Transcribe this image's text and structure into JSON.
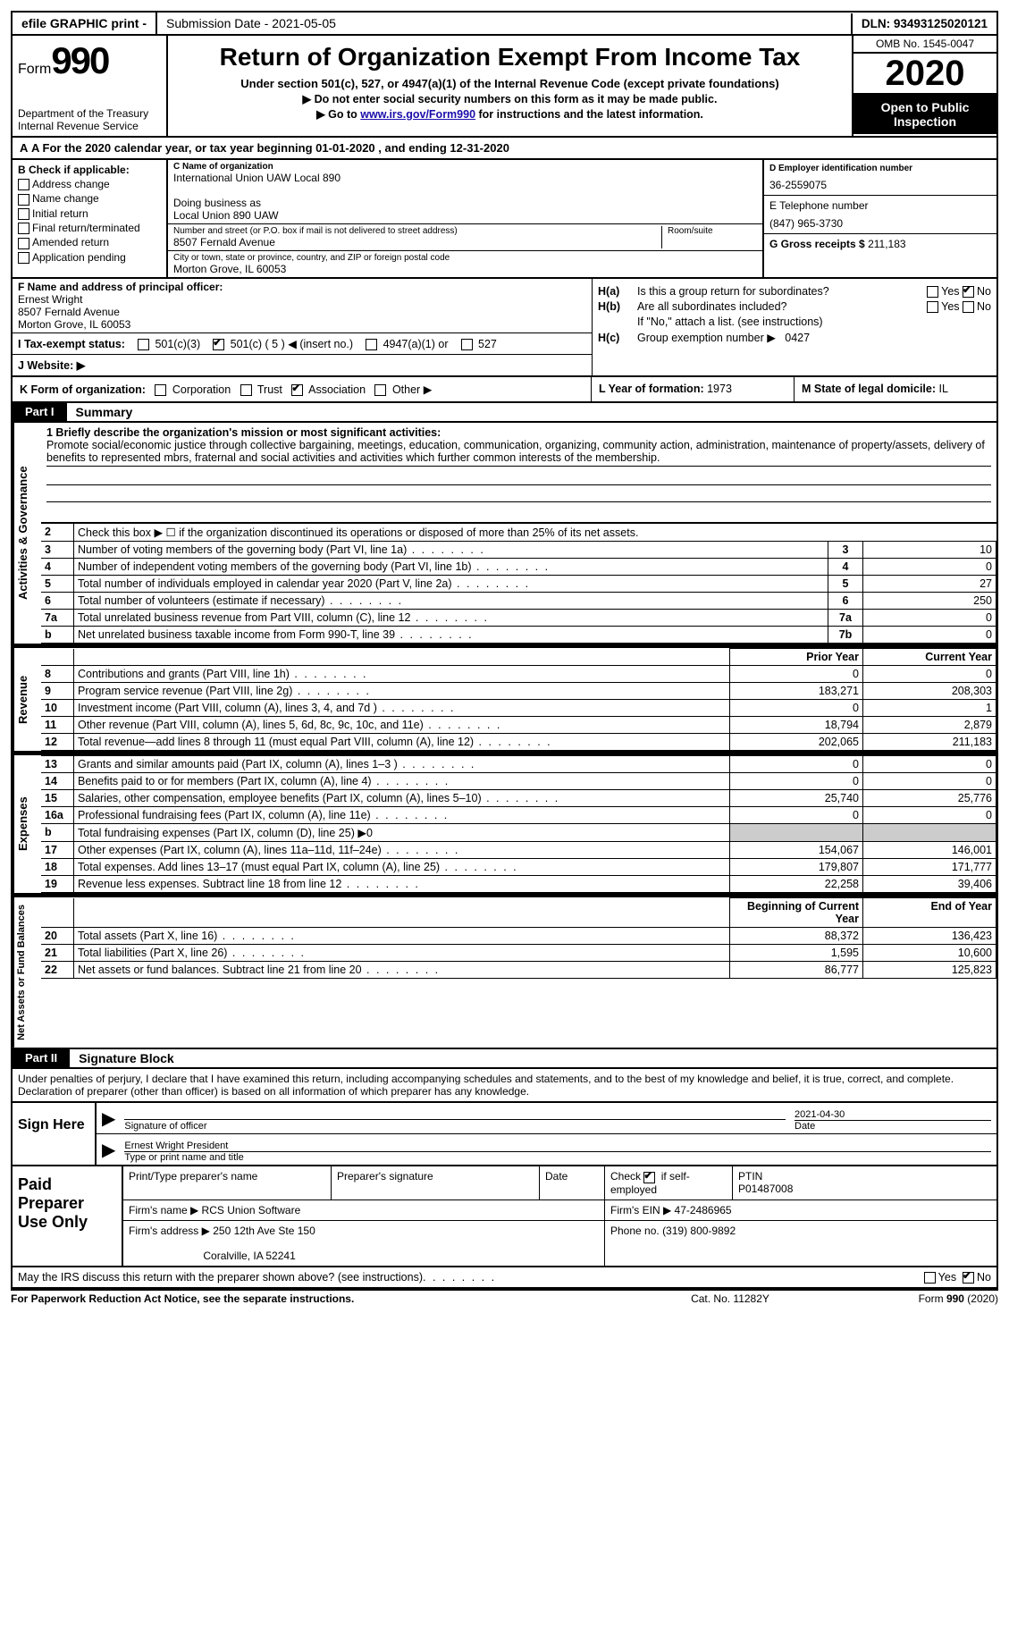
{
  "topbar": {
    "efile": "efile GRAPHIC print -",
    "submission": "Submission Date - 2021-05-05",
    "dln": "DLN: 93493125020121"
  },
  "header": {
    "form_word": "Form",
    "form_num": "990",
    "dept": "Department of the Treasury\nInternal Revenue Service",
    "title": "Return of Organization Exempt From Income Tax",
    "sub": "Under section 501(c), 527, or 4947(a)(1) of the Internal Revenue Code (except private foundations)",
    "line1": "▶ Do not enter social security numbers on this form as it may be made public.",
    "line2_pre": "▶ Go to ",
    "line2_link": "www.irs.gov/Form990",
    "line2_post": " for instructions and the latest information.",
    "omb": "OMB No. 1545-0047",
    "year": "2020",
    "open": "Open to Public Inspection"
  },
  "rowA": {
    "text": "A For the 2020 calendar year, or tax year beginning 01-01-2020    , and ending 12-31-2020"
  },
  "B": {
    "label": "B Check if applicable:",
    "items": [
      "Address change",
      "Name change",
      "Initial return",
      "Final return/terminated",
      "Amended return",
      "Application pending"
    ]
  },
  "C": {
    "name_lbl": "C Name of organization",
    "name": "International Union UAW Local 890",
    "dba_lbl": "Doing business as",
    "dba": "Local Union 890 UAW",
    "street_lbl": "Number and street (or P.O. box if mail is not delivered to street address)",
    "room_lbl": "Room/suite",
    "street": "8507 Fernald Avenue",
    "city_lbl": "City or town, state or province, country, and ZIP or foreign postal code",
    "city": "Morton Grove, IL  60053"
  },
  "D": {
    "ein_lbl": "D Employer identification number",
    "ein": "36-2559075",
    "tel_lbl": "E Telephone number",
    "tel": "(847) 965-3730",
    "gross_lbl": "G Gross receipts $",
    "gross": "211,183"
  },
  "F": {
    "lbl": "F Name and address of principal officer:",
    "name": "Ernest Wright",
    "addr1": "8507 Fernald Avenue",
    "addr2": "Morton Grove, IL  60053"
  },
  "I": {
    "lbl": "I    Tax-exempt status:",
    "opt1": "501(c)(3)",
    "opt2": "501(c) ( 5 ) ◀ (insert no.)",
    "opt3": "4947(a)(1) or",
    "opt4": "527"
  },
  "J": {
    "lbl": "J    Website: ▶"
  },
  "H": {
    "ha_lbl": "H(a)",
    "ha_txt": "Is this a group return for subordinates?",
    "hb_lbl": "H(b)",
    "hb_txt": "Are all subordinates included?",
    "hb_note": "If \"No,\" attach a list. (see instructions)",
    "hc_lbl": "H(c)",
    "hc_txt": "Group exemption number ▶",
    "hc_val": "0427"
  },
  "K": {
    "k": "K Form of organization:",
    "opts": [
      "Corporation",
      "Trust",
      "Association",
      "Other ▶"
    ],
    "l_lbl": "L Year of formation:",
    "l_val": "1973",
    "m_lbl": "M State of legal domicile:",
    "m_val": "IL"
  },
  "part1": {
    "tag": "Part I",
    "title": "Summary"
  },
  "mission": {
    "q": "1   Briefly describe the organization's mission or most significant activities:",
    "text": "Promote social/economic justice through collective bargaining, meetings, education, communication, organizing, community action, administration, maintenance of property/assets, delivery of benefits to represented mbrs, fraternal and social activities and activities which further common interests of the membership."
  },
  "gov_lines": [
    {
      "n": "2",
      "d": "Check this box ▶ ☐  if the organization discontinued its operations or disposed of more than 25% of its net assets.",
      "box": "",
      "v": ""
    },
    {
      "n": "3",
      "d": "Number of voting members of the governing body (Part VI, line 1a)",
      "box": "3",
      "v": "10"
    },
    {
      "n": "4",
      "d": "Number of independent voting members of the governing body (Part VI, line 1b)",
      "box": "4",
      "v": "0"
    },
    {
      "n": "5",
      "d": "Total number of individuals employed in calendar year 2020 (Part V, line 2a)",
      "box": "5",
      "v": "27"
    },
    {
      "n": "6",
      "d": "Total number of volunteers (estimate if necessary)",
      "box": "6",
      "v": "250"
    },
    {
      "n": "7a",
      "d": "Total unrelated business revenue from Part VIII, column (C), line 12",
      "box": "7a",
      "v": "0"
    },
    {
      "n": "b",
      "d": "Net unrelated business taxable income from Form 990-T, line 39",
      "box": "7b",
      "v": "0"
    }
  ],
  "rev_hdr": {
    "py": "Prior Year",
    "cy": "Current Year"
  },
  "rev_lines": [
    {
      "n": "8",
      "d": "Contributions and grants (Part VIII, line 1h)",
      "py": "0",
      "cy": "0"
    },
    {
      "n": "9",
      "d": "Program service revenue (Part VIII, line 2g)",
      "py": "183,271",
      "cy": "208,303"
    },
    {
      "n": "10",
      "d": "Investment income (Part VIII, column (A), lines 3, 4, and 7d )",
      "py": "0",
      "cy": "1"
    },
    {
      "n": "11",
      "d": "Other revenue (Part VIII, column (A), lines 5, 6d, 8c, 9c, 10c, and 11e)",
      "py": "18,794",
      "cy": "2,879"
    },
    {
      "n": "12",
      "d": "Total revenue—add lines 8 through 11 (must equal Part VIII, column (A), line 12)",
      "py": "202,065",
      "cy": "211,183"
    }
  ],
  "exp_lines": [
    {
      "n": "13",
      "d": "Grants and similar amounts paid (Part IX, column (A), lines 1–3 )",
      "py": "0",
      "cy": "0"
    },
    {
      "n": "14",
      "d": "Benefits paid to or for members (Part IX, column (A), line 4)",
      "py": "0",
      "cy": "0"
    },
    {
      "n": "15",
      "d": "Salaries, other compensation, employee benefits (Part IX, column (A), lines 5–10)",
      "py": "25,740",
      "cy": "25,776"
    },
    {
      "n": "16a",
      "d": "Professional fundraising fees (Part IX, column (A), line 11e)",
      "py": "0",
      "cy": "0"
    },
    {
      "n": "b",
      "d": "Total fundraising expenses (Part IX, column (D), line 25) ▶0",
      "py": "",
      "cy": "",
      "shade": true
    },
    {
      "n": "17",
      "d": "Other expenses (Part IX, column (A), lines 11a–11d, 11f–24e)",
      "py": "154,067",
      "cy": "146,001"
    },
    {
      "n": "18",
      "d": "Total expenses. Add lines 13–17 (must equal Part IX, column (A), line 25)",
      "py": "179,807",
      "cy": "171,777"
    },
    {
      "n": "19",
      "d": "Revenue less expenses. Subtract line 18 from line 12",
      "py": "22,258",
      "cy": "39,406"
    }
  ],
  "na_hdr": {
    "bcy": "Beginning of Current Year",
    "ey": "End of Year"
  },
  "na_lines": [
    {
      "n": "20",
      "d": "Total assets (Part X, line 16)",
      "py": "88,372",
      "cy": "136,423"
    },
    {
      "n": "21",
      "d": "Total liabilities (Part X, line 26)",
      "py": "1,595",
      "cy": "10,600"
    },
    {
      "n": "22",
      "d": "Net assets or fund balances. Subtract line 21 from line 20",
      "py": "86,777",
      "cy": "125,823"
    }
  ],
  "part2": {
    "tag": "Part II",
    "title": "Signature Block"
  },
  "sig": {
    "intro": "Under penalties of perjury, I declare that I have examined this return, including accompanying schedules and statements, and to the best of my knowledge and belief, it is true, correct, and complete. Declaration of preparer (other than officer) is based on all information of which preparer has any knowledge.",
    "left": "Sign Here",
    "sig_lbl": "Signature of officer",
    "date_lbl": "Date",
    "date": "2021-04-30",
    "name": "Ernest Wright President",
    "name_lbl": "Type or print name and title"
  },
  "prep": {
    "left": "Paid Preparer Use Only",
    "h1": "Print/Type preparer's name",
    "h2": "Preparer's signature",
    "h3": "Date",
    "h4_a": "Check",
    "h4_b": "if self-employed",
    "h5": "PTIN",
    "ptin": "P01487008",
    "firm_lbl": "Firm's name    ▶",
    "firm": "RCS Union Software",
    "ein_lbl": "Firm's EIN ▶",
    "ein": "47-2486965",
    "addr_lbl": "Firm's address ▶",
    "addr1": "250 12th Ave Ste 150",
    "addr2": "Coralville, IA  52241",
    "phone_lbl": "Phone no.",
    "phone": "(319) 800-9892"
  },
  "discuss": "May the IRS discuss this return with the preparer shown above? (see instructions)",
  "footer": {
    "f1": "For Paperwork Reduction Act Notice, see the separate instructions.",
    "f2": "Cat. No. 11282Y",
    "f3": "Form 990 (2020)"
  },
  "vtabs": {
    "gov": "Activities & Governance",
    "rev": "Revenue",
    "exp": "Expenses",
    "na": "Net Assets or Fund Balances"
  }
}
